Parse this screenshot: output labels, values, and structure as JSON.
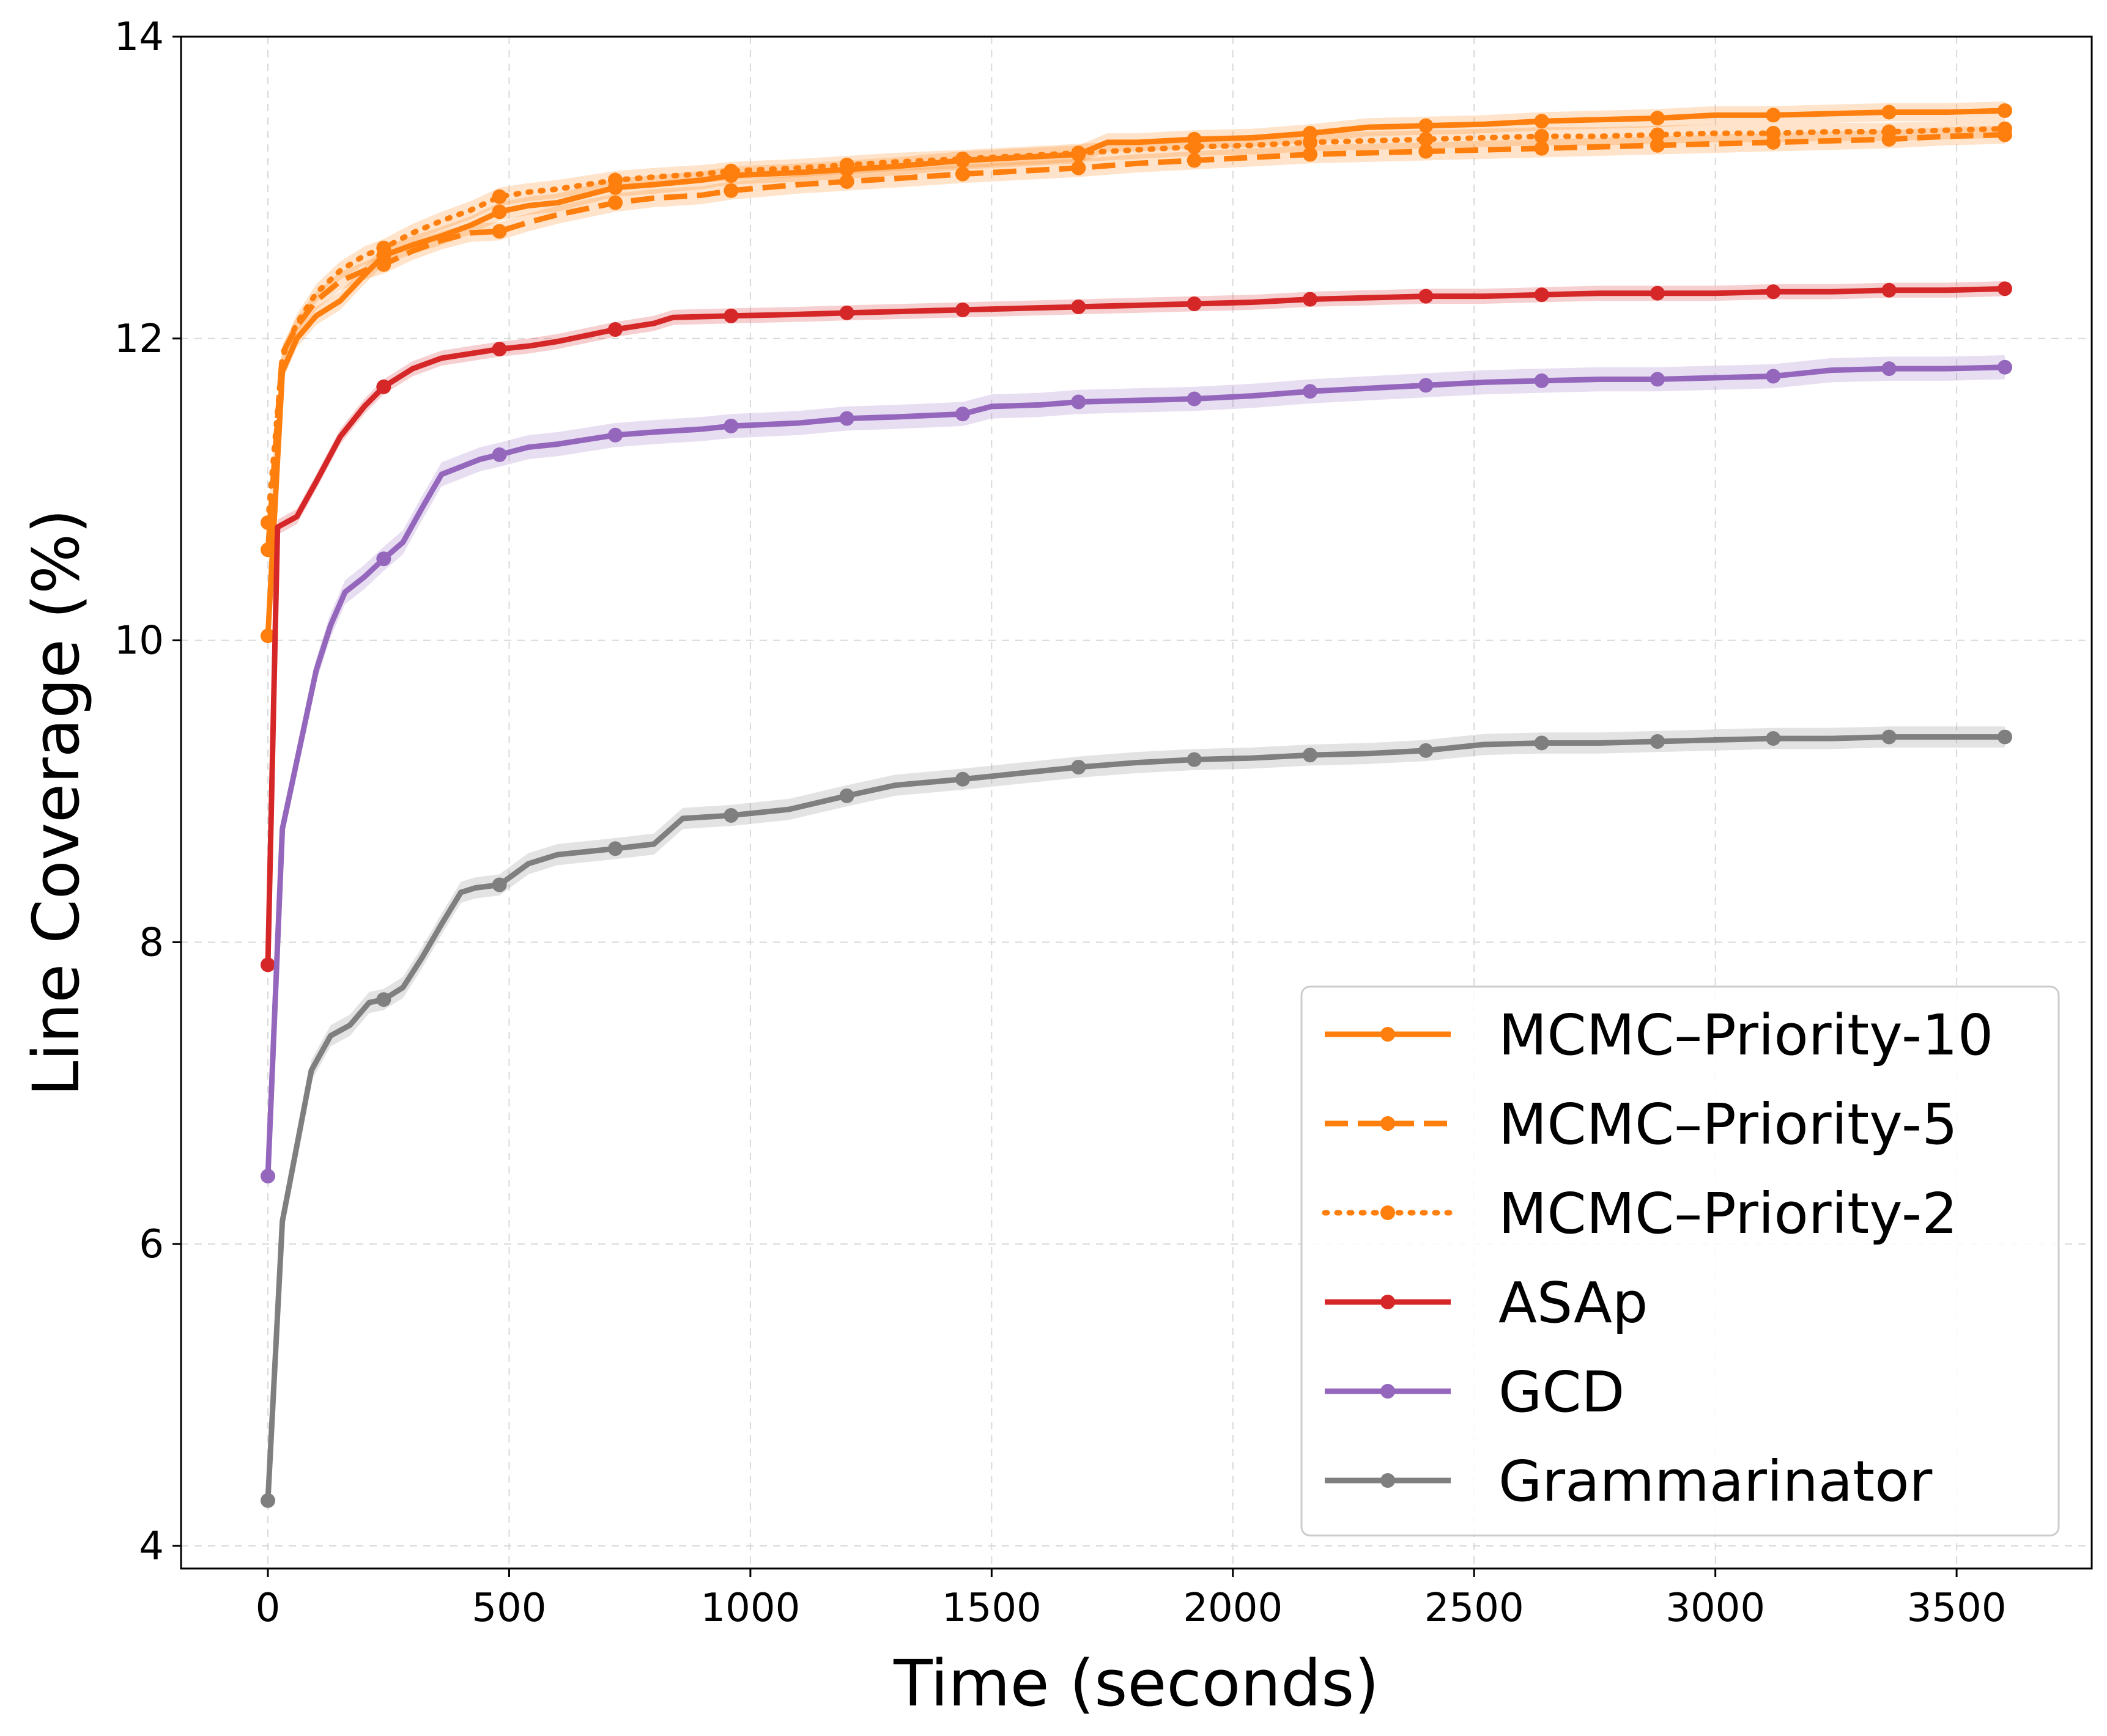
{
  "chart_data": {
    "type": "line",
    "title": "",
    "xlabel": "Time (seconds)",
    "ylabel": "Line Coverage (%)",
    "xlim": [
      -180,
      3780
    ],
    "ylim": [
      3.85,
      14
    ],
    "xticks": [
      0,
      500,
      1000,
      1500,
      2000,
      2500,
      3000,
      3500
    ],
    "yticks": [
      4,
      6,
      8,
      10,
      12,
      14
    ],
    "grid": true,
    "legend_position": "lower-right",
    "series": [
      {
        "name": "MCMC–Priority-10",
        "color": "#ff7f0e",
        "dash": "solid",
        "band": 0.06,
        "x": [
          0,
          30,
          60,
          100,
          150,
          200,
          240,
          300,
          360,
          420,
          480,
          540,
          600,
          660,
          720,
          800,
          900,
          960,
          1100,
          1200,
          1300,
          1440,
          1560,
          1680,
          1740,
          1800,
          1920,
          2040,
          2160,
          2280,
          2400,
          2520,
          2640,
          2760,
          2880,
          3000,
          3120,
          3240,
          3360,
          3480,
          3600
        ],
        "y": [
          10.03,
          11.78,
          12.0,
          12.15,
          12.25,
          12.42,
          12.55,
          12.62,
          12.68,
          12.75,
          12.84,
          12.88,
          12.9,
          12.95,
          13.0,
          13.02,
          13.05,
          13.08,
          13.1,
          13.12,
          13.14,
          13.18,
          13.2,
          13.22,
          13.3,
          13.3,
          13.32,
          13.33,
          13.36,
          13.4,
          13.41,
          13.42,
          13.44,
          13.45,
          13.46,
          13.48,
          13.48,
          13.49,
          13.5,
          13.5,
          13.51
        ],
        "markers_x": [
          0,
          240,
          480,
          720,
          960,
          1200,
          1440,
          1680,
          1920,
          2160,
          2400,
          2640,
          2880,
          3120,
          3360,
          3600
        ]
      },
      {
        "name": "MCMC–Priority-5",
        "color": "#ff7f0e",
        "dash": "dashed",
        "band": 0.06,
        "x": [
          0,
          30,
          60,
          100,
          150,
          200,
          240,
          300,
          360,
          420,
          480,
          540,
          600,
          660,
          720,
          800,
          900,
          960,
          1100,
          1200,
          1300,
          1440,
          1560,
          1680,
          1800,
          1920,
          2040,
          2160,
          2280,
          2400,
          2520,
          2640,
          2760,
          2880,
          3000,
          3120,
          3240,
          3360,
          3480,
          3600
        ],
        "y": [
          10.6,
          11.9,
          12.08,
          12.25,
          12.38,
          12.45,
          12.49,
          12.58,
          12.65,
          12.7,
          12.71,
          12.77,
          12.82,
          12.86,
          12.9,
          12.93,
          12.95,
          12.98,
          13.02,
          13.04,
          13.06,
          13.09,
          13.11,
          13.13,
          13.16,
          13.18,
          13.2,
          13.22,
          13.23,
          13.24,
          13.25,
          13.26,
          13.27,
          13.28,
          13.29,
          13.3,
          13.31,
          13.32,
          13.34,
          13.35
        ],
        "markers_x": [
          0,
          240,
          480,
          720,
          960,
          1200,
          1440,
          1680,
          1920,
          2160,
          2400,
          2640,
          2880,
          3120,
          3360,
          3600
        ]
      },
      {
        "name": "MCMC–Priority-2",
        "color": "#ff7f0e",
        "dash": "dotted",
        "band": 0.06,
        "x": [
          0,
          30,
          60,
          100,
          150,
          200,
          240,
          300,
          360,
          420,
          480,
          540,
          600,
          660,
          720,
          800,
          900,
          960,
          1100,
          1200,
          1300,
          1440,
          1560,
          1680,
          1800,
          1920,
          2040,
          2160,
          2280,
          2400,
          2520,
          2640,
          2760,
          2880,
          3000,
          3120,
          3240,
          3360,
          3480,
          3600
        ],
        "y": [
          10.78,
          11.88,
          12.1,
          12.3,
          12.45,
          12.55,
          12.6,
          12.7,
          12.78,
          12.85,
          12.94,
          12.97,
          12.99,
          13.02,
          13.05,
          13.07,
          13.09,
          13.11,
          13.13,
          13.15,
          13.17,
          13.19,
          13.21,
          13.23,
          13.25,
          13.27,
          13.28,
          13.3,
          13.31,
          13.32,
          13.33,
          13.34,
          13.34,
          13.35,
          13.36,
          13.36,
          13.37,
          13.37,
          13.38,
          13.39
        ],
        "markers_x": [
          0,
          240,
          480,
          720,
          960,
          1200,
          1440,
          1680,
          1920,
          2160,
          2400,
          2640,
          2880,
          3120,
          3360,
          3600
        ]
      },
      {
        "name": "ASAp",
        "color": "#d62728",
        "dash": "solid",
        "band": 0.05,
        "x": [
          0,
          20,
          60,
          100,
          150,
          200,
          240,
          300,
          360,
          420,
          480,
          540,
          600,
          660,
          720,
          800,
          840,
          960,
          1100,
          1200,
          1320,
          1440,
          1560,
          1680,
          1800,
          1920,
          2040,
          2160,
          2280,
          2400,
          2520,
          2640,
          2760,
          2880,
          3000,
          3120,
          3240,
          3360,
          3480,
          3600
        ],
        "y": [
          7.85,
          10.75,
          10.82,
          11.05,
          11.35,
          11.55,
          11.68,
          11.8,
          11.87,
          11.9,
          11.93,
          11.95,
          11.98,
          12.02,
          12.06,
          12.1,
          12.14,
          12.15,
          12.16,
          12.17,
          12.18,
          12.19,
          12.2,
          12.21,
          12.22,
          12.23,
          12.24,
          12.26,
          12.27,
          12.28,
          12.28,
          12.29,
          12.3,
          12.3,
          12.3,
          12.31,
          12.31,
          12.32,
          12.32,
          12.33
        ],
        "markers_x": [
          0,
          240,
          480,
          720,
          960,
          1200,
          1440,
          1680,
          1920,
          2160,
          2400,
          2640,
          2880,
          3120,
          3360,
          3600
        ]
      },
      {
        "name": "GCD",
        "color": "#9467bd",
        "dash": "solid",
        "band": 0.08,
        "x": [
          0,
          30,
          60,
          100,
          130,
          160,
          200,
          240,
          280,
          320,
          360,
          400,
          440,
          480,
          540,
          600,
          660,
          720,
          800,
          900,
          960,
          1100,
          1200,
          1300,
          1440,
          1500,
          1600,
          1680,
          1800,
          1920,
          2040,
          2160,
          2280,
          2400,
          2520,
          2640,
          2760,
          2880,
          3000,
          3120,
          3240,
          3360,
          3480,
          3600
        ],
        "y": [
          6.45,
          8.75,
          9.2,
          9.8,
          10.1,
          10.32,
          10.42,
          10.54,
          10.65,
          10.88,
          11.1,
          11.15,
          11.2,
          11.23,
          11.28,
          11.3,
          11.33,
          11.36,
          11.38,
          11.4,
          11.42,
          11.44,
          11.47,
          11.48,
          11.5,
          11.55,
          11.56,
          11.58,
          11.59,
          11.6,
          11.62,
          11.65,
          11.67,
          11.69,
          11.71,
          11.72,
          11.73,
          11.73,
          11.74,
          11.75,
          11.79,
          11.8,
          11.8,
          11.81
        ],
        "markers_x": [
          0,
          240,
          480,
          720,
          960,
          1200,
          1440,
          1680,
          1920,
          2160,
          2400,
          2640,
          2880,
          3120,
          3360,
          3600
        ]
      },
      {
        "name": "Grammarinator",
        "color": "#7f7f7f",
        "dash": "solid",
        "band": 0.07,
        "x": [
          0,
          30,
          60,
          90,
          130,
          170,
          210,
          240,
          280,
          320,
          360,
          400,
          430,
          480,
          540,
          600,
          660,
          720,
          800,
          860,
          960,
          1080,
          1200,
          1300,
          1440,
          1560,
          1680,
          1800,
          1920,
          2040,
          2160,
          2280,
          2400,
          2520,
          2640,
          2760,
          2880,
          3000,
          3120,
          3240,
          3360,
          3480,
          3600
        ],
        "y": [
          4.3,
          6.15,
          6.65,
          7.15,
          7.38,
          7.45,
          7.6,
          7.62,
          7.7,
          7.9,
          8.12,
          8.33,
          8.36,
          8.38,
          8.52,
          8.58,
          8.6,
          8.62,
          8.65,
          8.82,
          8.84,
          8.88,
          8.97,
          9.04,
          9.08,
          9.12,
          9.16,
          9.19,
          9.21,
          9.22,
          9.24,
          9.25,
          9.27,
          9.31,
          9.32,
          9.32,
          9.33,
          9.34,
          9.35,
          9.35,
          9.36,
          9.36,
          9.36
        ],
        "markers_x": [
          0,
          240,
          480,
          720,
          960,
          1200,
          1440,
          1680,
          1920,
          2160,
          2400,
          2640,
          2880,
          3120,
          3360,
          3600
        ]
      }
    ]
  }
}
